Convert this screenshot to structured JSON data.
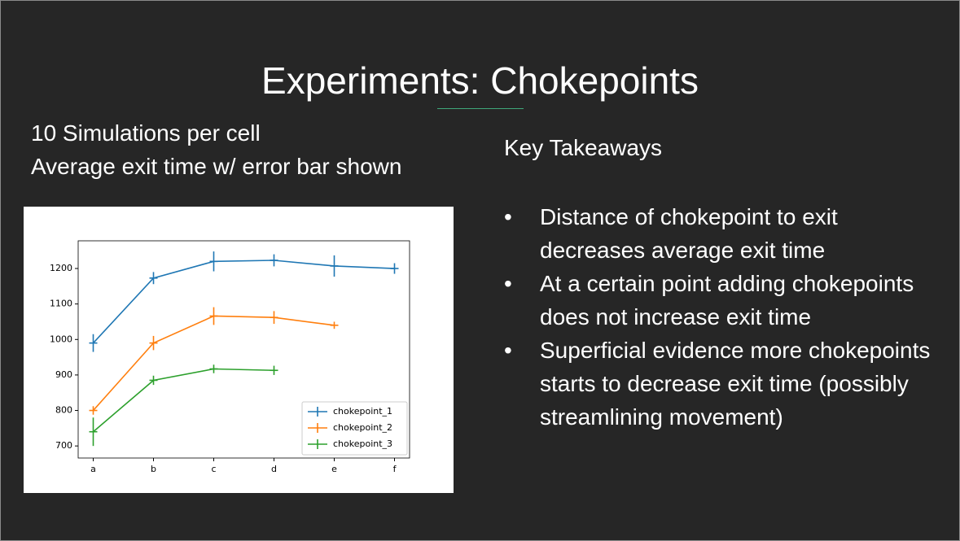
{
  "slide": {
    "title": "Experiments: Chokepoints",
    "left_lines": [
      "10 Simulations per cell",
      "Average exit time w/ error bar shown"
    ],
    "takeaways_heading": "Key Takeaways",
    "takeaways": [
      "Distance of chokepoint to exit decreases average exit time",
      "At a certain point adding chokepoints does not increase exit time",
      "Superficial evidence more chokepoints starts to decrease exit time (possibly streamlining movement)"
    ]
  },
  "chart_data": {
    "type": "errorbar-line",
    "categories": [
      "a",
      "b",
      "c",
      "d",
      "e",
      "f"
    ],
    "series": [
      {
        "name": "chokepoint_1",
        "color": "#1f77b4",
        "values": [
          990,
          1173,
          1220,
          1223,
          1207,
          1200
        ],
        "errors": [
          25,
          17,
          28,
          17,
          30,
          15
        ]
      },
      {
        "name": "chokepoint_2",
        "color": "#ff7f0e",
        "values": [
          800,
          990,
          1066,
          1062,
          1040,
          null
        ],
        "errors": [
          12,
          20,
          25,
          18,
          10,
          null
        ]
      },
      {
        "name": "chokepoint_3",
        "color": "#2ca02c",
        "values": [
          740,
          885,
          917,
          913,
          null,
          null
        ],
        "errors": [
          40,
          13,
          12,
          13,
          null,
          null
        ]
      }
    ],
    "ylim": [
      666,
      1278
    ],
    "yticks": [
      700,
      800,
      900,
      1000,
      1100,
      1200
    ],
    "legend": "lower right"
  }
}
